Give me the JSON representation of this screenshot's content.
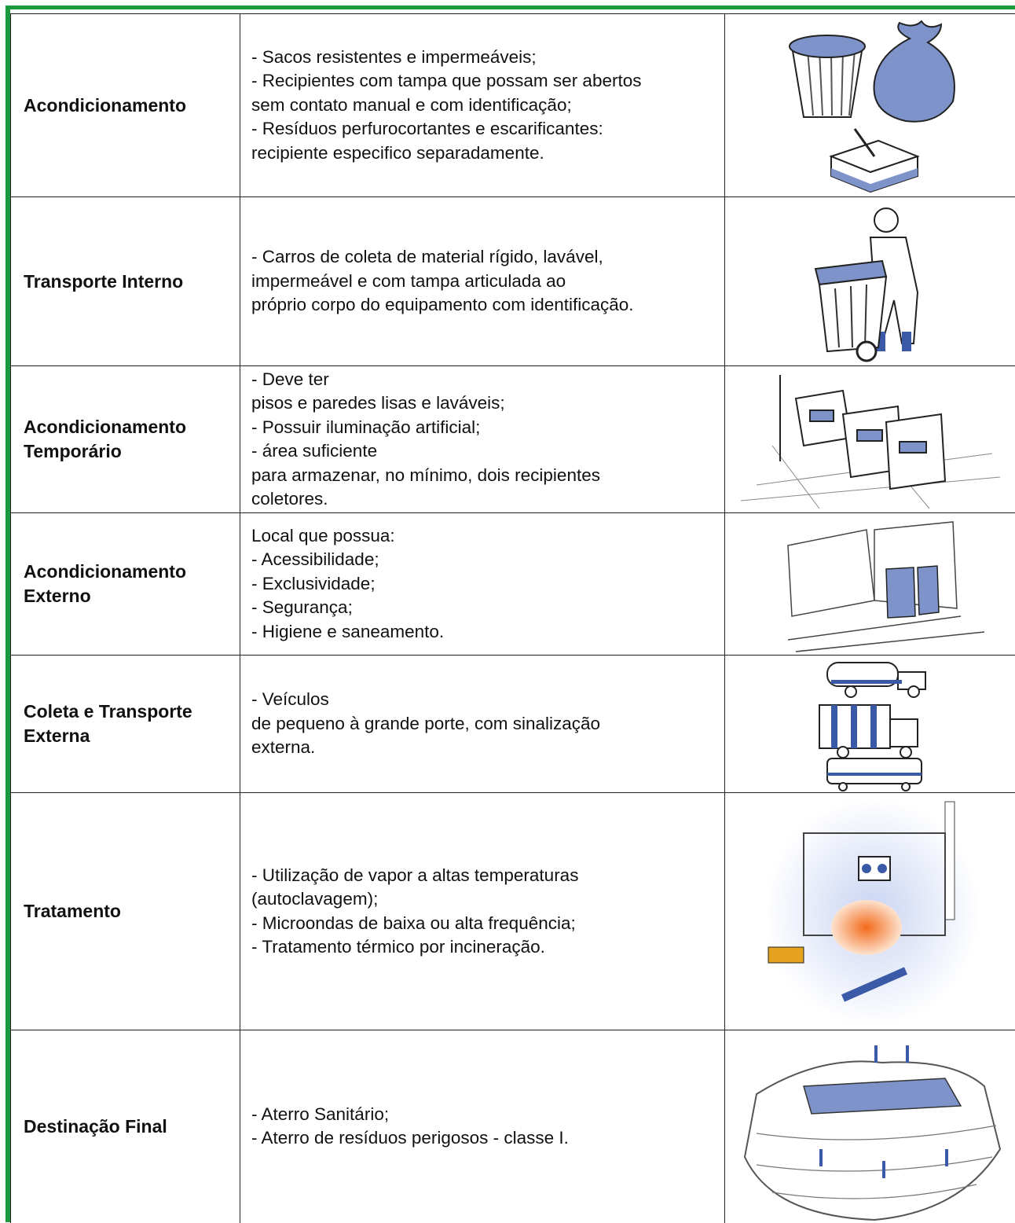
{
  "table": {
    "rows": [
      {
        "label": "Acondicionamento",
        "lines": [
          "- Sacos resistentes e impermeáveis;",
          "- Recipientes com tampa que possam ser abertos",
          "sem contato manual e com identificação;",
          "- Resíduos perfurocortantes e escarificantes:",
          "recipiente especifico separadamente."
        ]
      },
      {
        "label": "Transporte Interno",
        "lines": [
          "- Carros de coleta de material rígido, lavável,",
          "impermeável e com tampa articulada ao",
          "próprio corpo do equipamento com identificação."
        ]
      },
      {
        "label": "Acondicionamento Temporário",
        "lines": [
          "- Deve ter",
          "pisos e paredes lisas e laváveis;",
          "- Possuir iluminação artificial;",
          "- área suficiente",
          "para armazenar, no mínimo, dois recipientes",
          "coletores."
        ]
      },
      {
        "label": "Acondicionamento Externo",
        "lines": [
          "Local que possua:",
          "- Acessibilidade;",
          "- Exclusividade;",
          "- Segurança;",
          "- Higiene e saneamento."
        ]
      },
      {
        "label": "Coleta e Transporte Externa",
        "lines": [
          "- Veículos",
          "de pequeno à grande porte, com sinalização",
          "externa."
        ]
      },
      {
        "label": "Tratamento",
        "lines": [
          "- Utilização de vapor a altas temperaturas",
          "(autoclavagem);",
          "- Microondas de baixa ou alta frequência;",
          "- Tratamento térmico por incineração."
        ]
      },
      {
        "label": "Destinação Final",
        "lines": [
          "- Aterro Sanitário;",
          "- Aterro de resíduos perigosos - classe I."
        ]
      }
    ]
  }
}
